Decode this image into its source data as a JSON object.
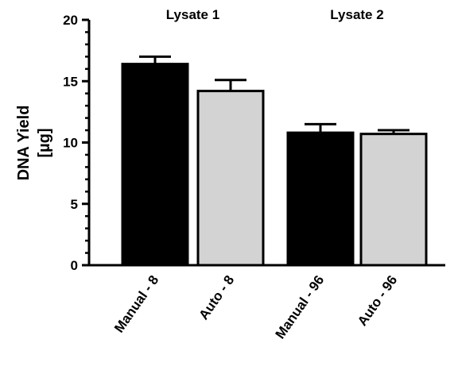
{
  "chart_data": {
    "type": "bar",
    "categories": [
      "Manual - 8",
      "Auto - 8",
      "Manual - 96",
      "Auto - 96"
    ],
    "values": [
      16.4,
      14.2,
      10.8,
      10.7
    ],
    "errors": [
      0.6,
      0.9,
      0.7,
      0.3
    ],
    "bar_colors": [
      "#000000",
      "#d3d3d3",
      "#000000",
      "#d3d3d3"
    ],
    "groups": [
      {
        "label": "Lysate 1",
        "categories": [
          "Manual - 8",
          "Auto - 8"
        ]
      },
      {
        "label": "Lysate 2",
        "categories": [
          "Manual - 96",
          "Auto - 96"
        ]
      }
    ],
    "ylabel_line1": "DNA Yield",
    "ylabel_line2": "[µg]",
    "ylim": [
      0,
      20
    ],
    "yticks_major": [
      0,
      5,
      10,
      15,
      20
    ],
    "yticks_minor": [
      1,
      2,
      3,
      4,
      6,
      7,
      8,
      9,
      11,
      12,
      13,
      14,
      16,
      17,
      18,
      19
    ],
    "grid": false,
    "legend": "none"
  }
}
